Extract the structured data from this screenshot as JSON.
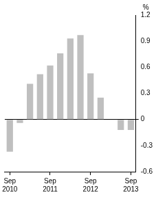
{
  "chart_data": {
    "type": "bar",
    "y_label": "%",
    "categories": [
      "Sep 2010",
      null,
      null,
      null,
      "Sep 2011",
      null,
      null,
      null,
      "Sep 2012",
      null,
      null,
      null,
      "Sep 2013"
    ],
    "values": [
      -0.37,
      -0.04,
      0.41,
      0.52,
      0.62,
      0.76,
      0.93,
      0.97,
      0.53,
      0.25,
      0,
      -0.12,
      -0.12
    ],
    "color": "#bfbfbf",
    "ylim": [
      -0.6,
      1.2
    ],
    "yticks": [
      -0.6,
      -0.3,
      0,
      0.3,
      0.6,
      0.9,
      1.2
    ],
    "grid": false
  }
}
